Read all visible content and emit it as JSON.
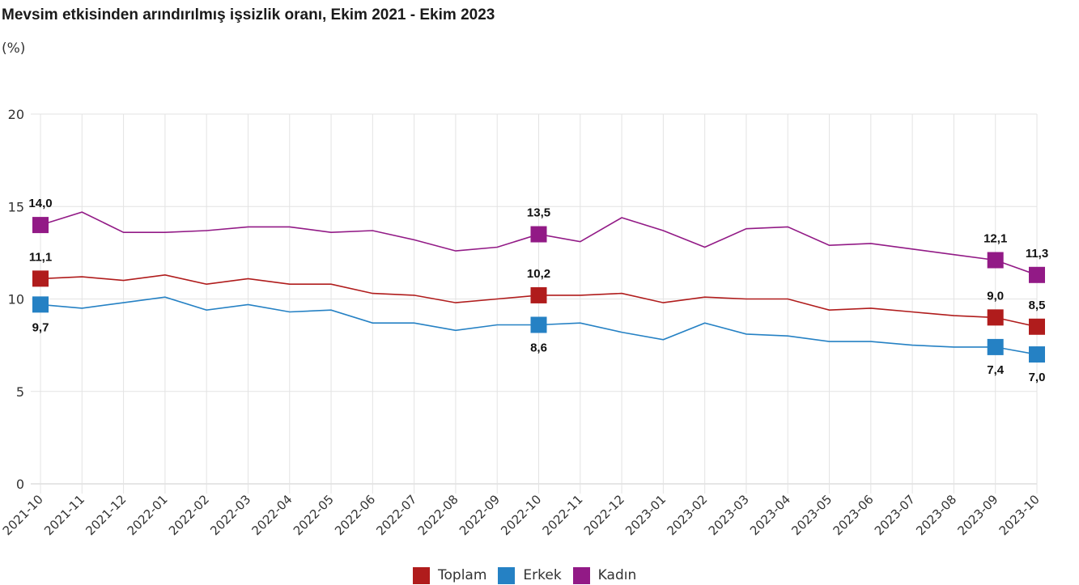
{
  "chart_data": {
    "type": "line",
    "title": "Mevsim etkisinden arındırılmış işsizlik oranı, Ekim 2021 - Ekim 2023",
    "subtitle": "(%)",
    "xlabel": "",
    "ylabel": "",
    "ylim": [
      0,
      20
    ],
    "yticks": [
      "0",
      "5",
      "10",
      "15",
      "20"
    ],
    "ytick_values": [
      0,
      5,
      10,
      15,
      20
    ],
    "grid": true,
    "legend_position": "bottom",
    "categories": [
      "2021-10",
      "2021-11",
      "2021-12",
      "2022-01",
      "2022-02",
      "2022-03",
      "2022-04",
      "2022-05",
      "2022-06",
      "2022-07",
      "2022-08",
      "2022-09",
      "2022-10",
      "2022-11",
      "2022-12",
      "2023-01",
      "2023-02",
      "2023-03",
      "2023-04",
      "2023-05",
      "2023-06",
      "2023-07",
      "2023-08",
      "2023-09",
      "2023-10"
    ],
    "series": [
      {
        "name": "Toplam",
        "color": "#b01c1c",
        "values": [
          11.1,
          11.2,
          11.0,
          11.3,
          10.8,
          11.1,
          10.8,
          10.8,
          10.3,
          10.2,
          9.8,
          10.0,
          10.2,
          10.2,
          10.3,
          9.8,
          10.1,
          10.0,
          10.0,
          9.4,
          9.5,
          9.3,
          9.1,
          9.0,
          8.5
        ],
        "labels": [
          {
            "index": 0,
            "text": "11,1",
            "pos": "above"
          },
          {
            "index": 12,
            "text": "10,2",
            "pos": "above"
          },
          {
            "index": 23,
            "text": "9,0",
            "pos": "above"
          },
          {
            "index": 24,
            "text": "8,5",
            "pos": "above"
          }
        ]
      },
      {
        "name": "Erkek",
        "color": "#2581c4",
        "values": [
          9.7,
          9.5,
          9.8,
          10.1,
          9.4,
          9.7,
          9.3,
          9.4,
          8.7,
          8.7,
          8.3,
          8.6,
          8.6,
          8.7,
          8.2,
          7.8,
          8.7,
          8.1,
          8.0,
          7.7,
          7.7,
          7.5,
          7.4,
          7.4,
          7.0
        ],
        "labels": [
          {
            "index": 0,
            "text": "9,7",
            "pos": "below"
          },
          {
            "index": 12,
            "text": "8,6",
            "pos": "below"
          },
          {
            "index": 23,
            "text": "7,4",
            "pos": "below"
          },
          {
            "index": 24,
            "text": "7,0",
            "pos": "below"
          }
        ]
      },
      {
        "name": "Kadın",
        "color": "#921a86",
        "values": [
          14.0,
          14.7,
          13.6,
          13.6,
          13.7,
          13.9,
          13.9,
          13.6,
          13.7,
          13.2,
          12.6,
          12.8,
          13.5,
          13.1,
          14.4,
          13.7,
          12.8,
          13.8,
          13.9,
          12.9,
          13.0,
          12.7,
          12.4,
          12.1,
          11.3
        ],
        "labels": [
          {
            "index": 0,
            "text": "14,0",
            "pos": "above"
          },
          {
            "index": 12,
            "text": "13,5",
            "pos": "above"
          },
          {
            "index": 23,
            "text": "12,1",
            "pos": "above"
          },
          {
            "index": 24,
            "text": "11,3",
            "pos": "above"
          }
        ]
      }
    ],
    "marker_indices": [
      0,
      12,
      23,
      24
    ]
  }
}
